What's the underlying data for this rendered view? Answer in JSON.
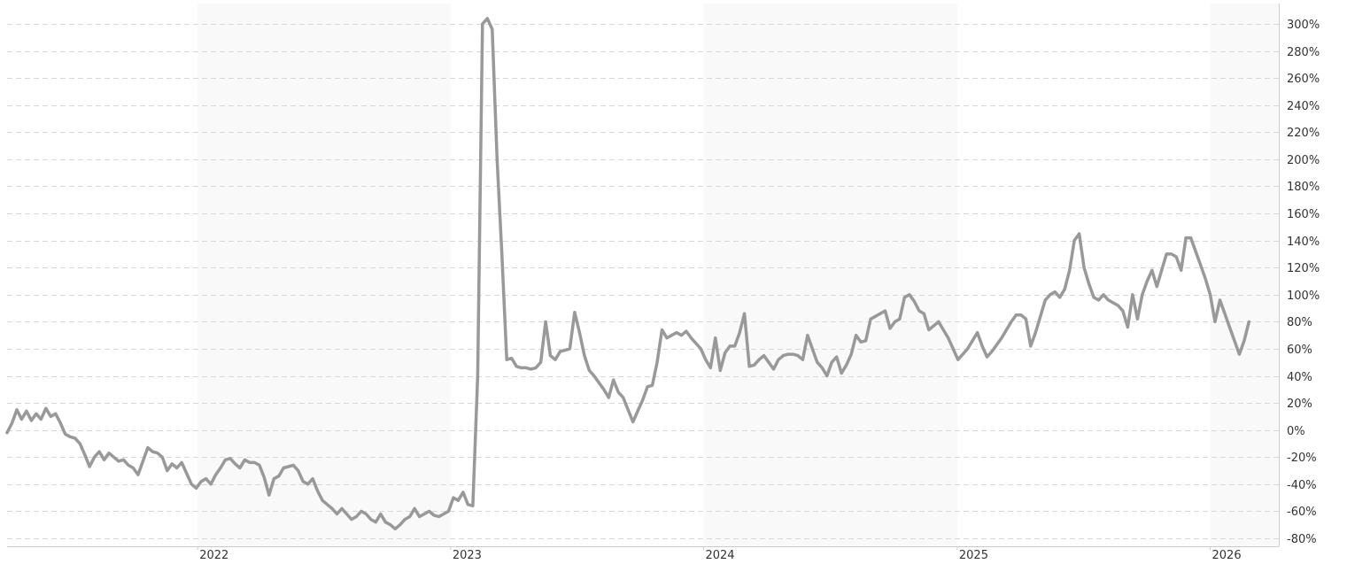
{
  "chart_data": {
    "type": "line",
    "title": "",
    "xlabel": "",
    "ylabel": "",
    "y_unit": "%",
    "ylim": [
      -80,
      310
    ],
    "xlim": [
      "2021-04-01",
      "2026-04-10"
    ],
    "grid": "horizontal dashed",
    "legend": "none",
    "y_ticks": [
      "300%",
      "280%",
      "260%",
      "240%",
      "220%",
      "200%",
      "180%",
      "160%",
      "140%",
      "120%",
      "100%",
      "80%",
      "60%",
      "40%",
      "20%",
      "0%",
      "-20%",
      "-40%",
      "-60%",
      "-80%"
    ],
    "x_ticks": [
      "2022",
      "2023",
      "2024",
      "2025",
      "2026"
    ],
    "shaded_years": [
      "2022",
      "2024",
      "2026"
    ],
    "colors": {
      "line": "#999999",
      "band": "#f9f9f9",
      "grid": "#d8d8d8",
      "axis": "#cccccc",
      "text": "#333333"
    },
    "series": [
      {
        "name": "",
        "points": [
          [
            "2021-04-01",
            -2
          ],
          [
            "2021-04-08",
            5
          ],
          [
            "2021-04-15",
            15
          ],
          [
            "2021-04-22",
            8
          ],
          [
            "2021-04-29",
            14
          ],
          [
            "2021-05-06",
            7
          ],
          [
            "2021-05-13",
            12
          ],
          [
            "2021-05-20",
            8
          ],
          [
            "2021-05-27",
            16
          ],
          [
            "2021-06-03",
            10
          ],
          [
            "2021-06-10",
            12
          ],
          [
            "2021-06-17",
            5
          ],
          [
            "2021-06-24",
            -3
          ],
          [
            "2021-07-01",
            -5
          ],
          [
            "2021-07-08",
            -6
          ],
          [
            "2021-07-15",
            -10
          ],
          [
            "2021-07-22",
            -18
          ],
          [
            "2021-07-29",
            -27
          ],
          [
            "2021-08-05",
            -20
          ],
          [
            "2021-08-12",
            -16
          ],
          [
            "2021-08-19",
            -22
          ],
          [
            "2021-08-26",
            -17
          ],
          [
            "2021-09-02",
            -20
          ],
          [
            "2021-09-09",
            -23
          ],
          [
            "2021-09-16",
            -22
          ],
          [
            "2021-09-23",
            -26
          ],
          [
            "2021-09-30",
            -28
          ],
          [
            "2021-10-07",
            -33
          ],
          [
            "2021-10-14",
            -23
          ],
          [
            "2021-10-21",
            -13
          ],
          [
            "2021-10-28",
            -16
          ],
          [
            "2021-11-04",
            -17
          ],
          [
            "2021-11-11",
            -20
          ],
          [
            "2021-11-18",
            -30
          ],
          [
            "2021-11-25",
            -25
          ],
          [
            "2021-12-02",
            -28
          ],
          [
            "2021-12-09",
            -24
          ],
          [
            "2021-12-16",
            -32
          ],
          [
            "2021-12-23",
            -40
          ],
          [
            "2021-12-30",
            -43
          ],
          [
            "2022-01-06",
            -38
          ],
          [
            "2022-01-13",
            -36
          ],
          [
            "2022-01-20",
            -40
          ],
          [
            "2022-01-27",
            -33
          ],
          [
            "2022-02-03",
            -28
          ],
          [
            "2022-02-10",
            -22
          ],
          [
            "2022-02-17",
            -21
          ],
          [
            "2022-02-24",
            -25
          ],
          [
            "2022-03-03",
            -28
          ],
          [
            "2022-03-10",
            -22
          ],
          [
            "2022-03-17",
            -24
          ],
          [
            "2022-03-24",
            -24
          ],
          [
            "2022-03-31",
            -26
          ],
          [
            "2022-04-07",
            -35
          ],
          [
            "2022-04-14",
            -48
          ],
          [
            "2022-04-21",
            -36
          ],
          [
            "2022-04-28",
            -34
          ],
          [
            "2022-05-05",
            -28
          ],
          [
            "2022-05-12",
            -27
          ],
          [
            "2022-05-19",
            -26
          ],
          [
            "2022-05-26",
            -30
          ],
          [
            "2022-06-02",
            -38
          ],
          [
            "2022-06-09",
            -40
          ],
          [
            "2022-06-16",
            -36
          ],
          [
            "2022-06-23",
            -45
          ],
          [
            "2022-06-30",
            -52
          ],
          [
            "2022-07-07",
            -55
          ],
          [
            "2022-07-14",
            -58
          ],
          [
            "2022-07-21",
            -62
          ],
          [
            "2022-07-28",
            -58
          ],
          [
            "2022-08-04",
            -62
          ],
          [
            "2022-08-11",
            -66
          ],
          [
            "2022-08-18",
            -64
          ],
          [
            "2022-08-25",
            -60
          ],
          [
            "2022-09-01",
            -62
          ],
          [
            "2022-09-08",
            -66
          ],
          [
            "2022-09-15",
            -68
          ],
          [
            "2022-09-22",
            -62
          ],
          [
            "2022-09-29",
            -68
          ],
          [
            "2022-10-06",
            -70
          ],
          [
            "2022-10-13",
            -73
          ],
          [
            "2022-10-20",
            -70
          ],
          [
            "2022-10-27",
            -66
          ],
          [
            "2022-11-03",
            -64
          ],
          [
            "2022-11-10",
            -58
          ],
          [
            "2022-11-17",
            -64
          ],
          [
            "2022-11-24",
            -62
          ],
          [
            "2022-12-01",
            -60
          ],
          [
            "2022-12-08",
            -63
          ],
          [
            "2022-12-15",
            -64
          ],
          [
            "2022-12-22",
            -62
          ],
          [
            "2022-12-29",
            -60
          ],
          [
            "2023-01-05",
            -50
          ],
          [
            "2023-01-12",
            -52
          ],
          [
            "2023-01-19",
            -46
          ],
          [
            "2023-01-26",
            -55
          ],
          [
            "2023-02-02",
            -56
          ],
          [
            "2023-02-09",
            40
          ],
          [
            "2023-02-16",
            300
          ],
          [
            "2023-02-23",
            304
          ],
          [
            "2023-03-02",
            296
          ],
          [
            "2023-03-09",
            200
          ],
          [
            "2023-03-16",
            130
          ],
          [
            "2023-03-23",
            52
          ],
          [
            "2023-03-30",
            53
          ],
          [
            "2023-04-06",
            47
          ],
          [
            "2023-04-13",
            46
          ],
          [
            "2023-04-20",
            46
          ],
          [
            "2023-04-27",
            45
          ],
          [
            "2023-05-04",
            46
          ],
          [
            "2023-05-11",
            50
          ],
          [
            "2023-05-18",
            80
          ],
          [
            "2023-05-25",
            55
          ],
          [
            "2023-06-01",
            52
          ],
          [
            "2023-06-08",
            58
          ],
          [
            "2023-06-15",
            59
          ],
          [
            "2023-06-22",
            60
          ],
          [
            "2023-06-29",
            87
          ],
          [
            "2023-07-06",
            72
          ],
          [
            "2023-07-13",
            55
          ],
          [
            "2023-07-20",
            44
          ],
          [
            "2023-07-27",
            40
          ],
          [
            "2023-08-03",
            35
          ],
          [
            "2023-08-10",
            30
          ],
          [
            "2023-08-17",
            24
          ],
          [
            "2023-08-24",
            37
          ],
          [
            "2023-08-31",
            28
          ],
          [
            "2023-09-07",
            24
          ],
          [
            "2023-09-14",
            15
          ],
          [
            "2023-09-21",
            6
          ],
          [
            "2023-09-28",
            14
          ],
          [
            "2023-10-05",
            22
          ],
          [
            "2023-10-12",
            32
          ],
          [
            "2023-10-19",
            33
          ],
          [
            "2023-10-26",
            50
          ],
          [
            "2023-11-02",
            74
          ],
          [
            "2023-11-09",
            68
          ],
          [
            "2023-11-16",
            70
          ],
          [
            "2023-11-23",
            72
          ],
          [
            "2023-11-30",
            70
          ],
          [
            "2023-12-07",
            73
          ],
          [
            "2023-12-14",
            68
          ],
          [
            "2023-12-21",
            64
          ],
          [
            "2023-12-28",
            60
          ],
          [
            "2024-01-04",
            52
          ],
          [
            "2024-01-11",
            46
          ],
          [
            "2024-01-18",
            68
          ],
          [
            "2024-01-25",
            44
          ],
          [
            "2024-02-01",
            57
          ],
          [
            "2024-02-08",
            62
          ],
          [
            "2024-02-15",
            62
          ],
          [
            "2024-02-22",
            72
          ],
          [
            "2024-02-29",
            86
          ],
          [
            "2024-03-07",
            47
          ],
          [
            "2024-03-14",
            48
          ],
          [
            "2024-03-21",
            52
          ],
          [
            "2024-03-28",
            55
          ],
          [
            "2024-04-04",
            50
          ],
          [
            "2024-04-11",
            45
          ],
          [
            "2024-04-18",
            52
          ],
          [
            "2024-04-25",
            55
          ],
          [
            "2024-05-02",
            56
          ],
          [
            "2024-05-09",
            56
          ],
          [
            "2024-05-16",
            55
          ],
          [
            "2024-05-23",
            52
          ],
          [
            "2024-05-30",
            70
          ],
          [
            "2024-06-06",
            60
          ],
          [
            "2024-06-13",
            50
          ],
          [
            "2024-06-20",
            46
          ],
          [
            "2024-06-27",
            40
          ],
          [
            "2024-07-04",
            50
          ],
          [
            "2024-07-11",
            54
          ],
          [
            "2024-07-18",
            42
          ],
          [
            "2024-07-25",
            48
          ],
          [
            "2024-08-01",
            56
          ],
          [
            "2024-08-08",
            70
          ],
          [
            "2024-08-15",
            65
          ],
          [
            "2024-08-22",
            66
          ],
          [
            "2024-08-29",
            82
          ],
          [
            "2024-09-05",
            84
          ],
          [
            "2024-09-12",
            86
          ],
          [
            "2024-09-19",
            88
          ],
          [
            "2024-09-26",
            75
          ],
          [
            "2024-10-03",
            80
          ],
          [
            "2024-10-10",
            82
          ],
          [
            "2024-10-17",
            98
          ],
          [
            "2024-10-24",
            100
          ],
          [
            "2024-10-31",
            95
          ],
          [
            "2024-11-07",
            88
          ],
          [
            "2024-11-14",
            86
          ],
          [
            "2024-11-21",
            74
          ],
          [
            "2024-11-28",
            77
          ],
          [
            "2024-12-05",
            80
          ],
          [
            "2024-12-12",
            74
          ],
          [
            "2024-12-19",
            68
          ],
          [
            "2024-12-26",
            60
          ],
          [
            "2025-01-02",
            52
          ],
          [
            "2025-01-09",
            56
          ],
          [
            "2025-01-16",
            60
          ],
          [
            "2025-01-23",
            66
          ],
          [
            "2025-01-30",
            72
          ],
          [
            "2025-02-06",
            62
          ],
          [
            "2025-02-13",
            54
          ],
          [
            "2025-02-20",
            58
          ],
          [
            "2025-02-27",
            63
          ],
          [
            "2025-03-06",
            68
          ],
          [
            "2025-03-13",
            74
          ],
          [
            "2025-03-20",
            80
          ],
          [
            "2025-03-27",
            85
          ],
          [
            "2025-04-03",
            85
          ],
          [
            "2025-04-10",
            82
          ],
          [
            "2025-04-17",
            62
          ],
          [
            "2025-04-24",
            72
          ],
          [
            "2025-05-01",
            84
          ],
          [
            "2025-05-08",
            96
          ],
          [
            "2025-05-15",
            100
          ],
          [
            "2025-05-22",
            102
          ],
          [
            "2025-05-29",
            98
          ],
          [
            "2025-06-05",
            104
          ],
          [
            "2025-06-12",
            118
          ],
          [
            "2025-06-19",
            140
          ],
          [
            "2025-06-26",
            145
          ],
          [
            "2025-07-03",
            120
          ],
          [
            "2025-07-10",
            108
          ],
          [
            "2025-07-17",
            98
          ],
          [
            "2025-07-24",
            96
          ],
          [
            "2025-07-31",
            100
          ],
          [
            "2025-08-07",
            96
          ],
          [
            "2025-08-14",
            94
          ],
          [
            "2025-08-21",
            92
          ],
          [
            "2025-08-28",
            88
          ],
          [
            "2025-09-04",
            76
          ],
          [
            "2025-09-11",
            100
          ],
          [
            "2025-09-18",
            82
          ],
          [
            "2025-09-25",
            100
          ],
          [
            "2025-10-02",
            110
          ],
          [
            "2025-10-09",
            118
          ],
          [
            "2025-10-16",
            106
          ],
          [
            "2025-10-23",
            118
          ],
          [
            "2025-10-30",
            130
          ],
          [
            "2025-11-06",
            130
          ],
          [
            "2025-11-13",
            128
          ],
          [
            "2025-11-20",
            118
          ],
          [
            "2025-11-27",
            142
          ],
          [
            "2025-12-04",
            142
          ],
          [
            "2025-12-11",
            132
          ],
          [
            "2025-12-18",
            122
          ],
          [
            "2025-12-25",
            112
          ],
          [
            "2026-01-01",
            100
          ],
          [
            "2026-01-08",
            80
          ],
          [
            "2026-01-15",
            96
          ],
          [
            "2026-01-22",
            86
          ],
          [
            "2026-01-29",
            76
          ],
          [
            "2026-02-05",
            66
          ],
          [
            "2026-02-12",
            56
          ],
          [
            "2026-02-19",
            66
          ],
          [
            "2026-02-26",
            80
          ]
        ]
      }
    ]
  }
}
